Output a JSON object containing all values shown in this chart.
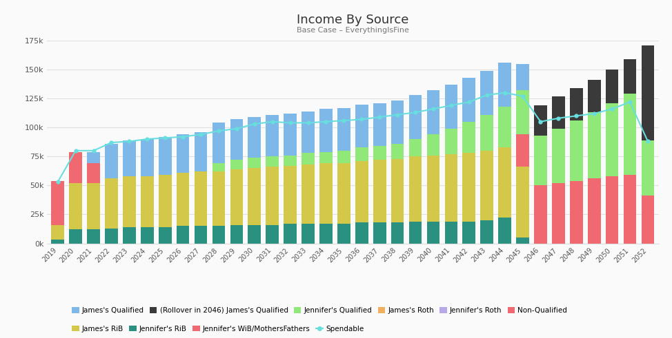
{
  "title": "Income By Source",
  "subtitle": "Base Case – EverythingIsFine",
  "years": [
    2019,
    2020,
    2021,
    2022,
    2023,
    2024,
    2025,
    2026,
    2027,
    2028,
    2029,
    2030,
    2031,
    2032,
    2033,
    2034,
    2035,
    2036,
    2037,
    2038,
    2039,
    2040,
    2041,
    2042,
    2043,
    2044,
    2045,
    2046,
    2047,
    2048,
    2049,
    2050,
    2051,
    2052
  ],
  "series": {
    "Jennifer_RiB": [
      3000,
      12000,
      12000,
      13000,
      14000,
      14000,
      14000,
      15000,
      15000,
      15000,
      16000,
      16000,
      16000,
      17000,
      17000,
      17000,
      17000,
      18000,
      18000,
      18000,
      19000,
      19000,
      19000,
      19000,
      20000,
      22000,
      5000,
      0,
      0,
      0,
      0,
      0,
      0,
      0
    ],
    "James_RiB": [
      13000,
      40000,
      40000,
      43000,
      44000,
      44000,
      45000,
      46000,
      47000,
      47000,
      48000,
      49000,
      50000,
      50000,
      51000,
      52000,
      52000,
      53000,
      54000,
      55000,
      56000,
      57000,
      58000,
      59000,
      60000,
      61000,
      61000,
      0,
      0,
      0,
      0,
      0,
      0,
      0
    ],
    "Non_Qualified": [
      38000,
      27000,
      17000,
      0,
      0,
      0,
      0,
      0,
      0,
      0,
      0,
      0,
      0,
      0,
      0,
      0,
      0,
      0,
      0,
      0,
      0,
      0,
      0,
      0,
      0,
      0,
      28000,
      50000,
      52000,
      54000,
      56000,
      58000,
      59000,
      41000
    ],
    "Jennifer_Qualified": [
      0,
      0,
      0,
      0,
      0,
      0,
      0,
      0,
      0,
      7000,
      8000,
      9000,
      9000,
      9000,
      10000,
      10000,
      11000,
      12000,
      12000,
      13000,
      15000,
      18000,
      22000,
      27000,
      31000,
      35000,
      38000,
      43000,
      47000,
      52000,
      57000,
      63000,
      70000,
      48000
    ],
    "James_Qualified": [
      0,
      0,
      10000,
      30000,
      31000,
      32000,
      33000,
      33000,
      34000,
      35000,
      35000,
      35000,
      36000,
      36000,
      36000,
      37000,
      37000,
      37000,
      37000,
      37000,
      38000,
      38000,
      38000,
      38000,
      38000,
      38000,
      23000,
      0,
      0,
      0,
      0,
      0,
      0,
      0
    ],
    "Rollover_James_Qualified": [
      0,
      0,
      0,
      0,
      0,
      0,
      0,
      0,
      0,
      0,
      0,
      0,
      0,
      0,
      0,
      0,
      0,
      0,
      0,
      0,
      0,
      0,
      0,
      0,
      0,
      0,
      0,
      26000,
      28000,
      28000,
      28000,
      29000,
      30000,
      82000
    ],
    "James_Roth": [
      0,
      0,
      0,
      0,
      0,
      0,
      0,
      0,
      0,
      0,
      0,
      0,
      0,
      0,
      0,
      0,
      0,
      0,
      0,
      0,
      0,
      0,
      0,
      0,
      0,
      0,
      0,
      0,
      0,
      0,
      0,
      0,
      0,
      0
    ],
    "Jennifer_Roth": [
      0,
      0,
      0,
      0,
      0,
      0,
      0,
      0,
      0,
      0,
      0,
      0,
      0,
      0,
      0,
      0,
      0,
      0,
      0,
      0,
      0,
      0,
      0,
      0,
      0,
      0,
      0,
      0,
      0,
      0,
      0,
      0,
      0,
      0
    ],
    "Jennifer_WiB": [
      0,
      0,
      0,
      0,
      0,
      0,
      0,
      0,
      0,
      0,
      0,
      0,
      0,
      0,
      0,
      0,
      0,
      0,
      0,
      0,
      0,
      0,
      0,
      0,
      0,
      0,
      0,
      0,
      0,
      0,
      0,
      0,
      0,
      0
    ],
    "Spendable": [
      53000,
      80000,
      80000,
      87000,
      88000,
      90000,
      91000,
      92000,
      94000,
      97000,
      99000,
      103000,
      105000,
      104000,
      104000,
      105000,
      106000,
      107000,
      109000,
      111000,
      113000,
      116000,
      119000,
      122000,
      128000,
      130000,
      127000,
      105000,
      108000,
      110000,
      112000,
      116000,
      122000,
      88000
    ]
  },
  "colors": {
    "James_Qualified": "#7db8e8",
    "Rollover_James_Qualified": "#3a3a3a",
    "Jennifer_Qualified": "#90e878",
    "James_Roth": "#f0b060",
    "Jennifer_Roth": "#b8a8e8",
    "Non_Qualified": "#f06870",
    "James_RiB": "#d4c84a",
    "Jennifer_RiB": "#2a9080",
    "Jennifer_WiB": "#f06870",
    "Spendable": "#68dede"
  },
  "legend_labels": {
    "James_Qualified": "James's Qualified",
    "Rollover_James_Qualified": "(Rollover in 2046) James's Qualified",
    "Jennifer_Qualified": "Jennifer's Qualified",
    "James_Roth": "James's Roth",
    "Jennifer_Roth": "Jennifer's Roth",
    "Non_Qualified": "Non-Qualified",
    "James_RiB": "James's RiB",
    "Jennifer_RiB": "Jennifer's RiB",
    "Jennifer_WiB": "Jennifer's WiB/MothersFathers",
    "Spendable": "Spendable"
  },
  "ylim": [
    0,
    175000
  ],
  "yticks": [
    0,
    25000,
    50000,
    75000,
    100000,
    125000,
    150000,
    175000
  ],
  "ytick_labels": [
    "0k",
    "25k",
    "50k",
    "75k",
    "100k",
    "125k",
    "150k",
    "175k"
  ],
  "background_color": "#fafafa",
  "grid_color": "#e0e0e0"
}
